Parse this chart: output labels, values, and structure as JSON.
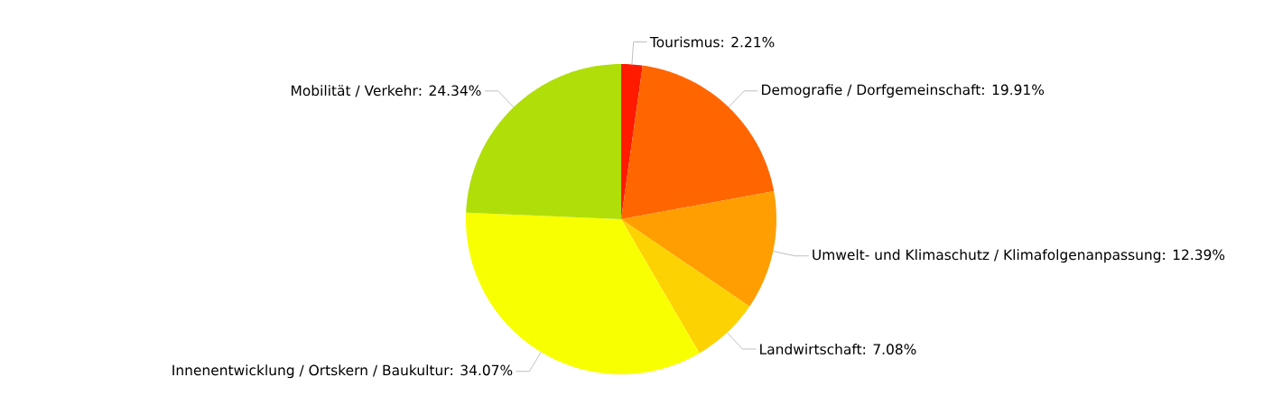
{
  "chart_data": {
    "type": "pie",
    "categories": [
      "Tourismus",
      "Demografie / Dorfgemeinschaft",
      "Umwelt- und Klimaschutz / Klimafolgenanpassung",
      "Landwirtschaft",
      "Innenentwicklung / Ortskern / Baukultur",
      "Mobilität / Verkehr"
    ],
    "values": [
      2.21,
      19.91,
      12.39,
      7.08,
      34.07,
      24.34
    ],
    "value_labels": [
      ": 2.21%",
      ": 19.91%",
      ": 12.39%",
      ": 7.08%",
      ": 34.07%",
      ": 24.34%"
    ],
    "colors": [
      "#ff1a00",
      "#ff6600",
      "#ff9e01",
      "#fcd202",
      "#f8ff01",
      "#b0de09"
    ]
  }
}
